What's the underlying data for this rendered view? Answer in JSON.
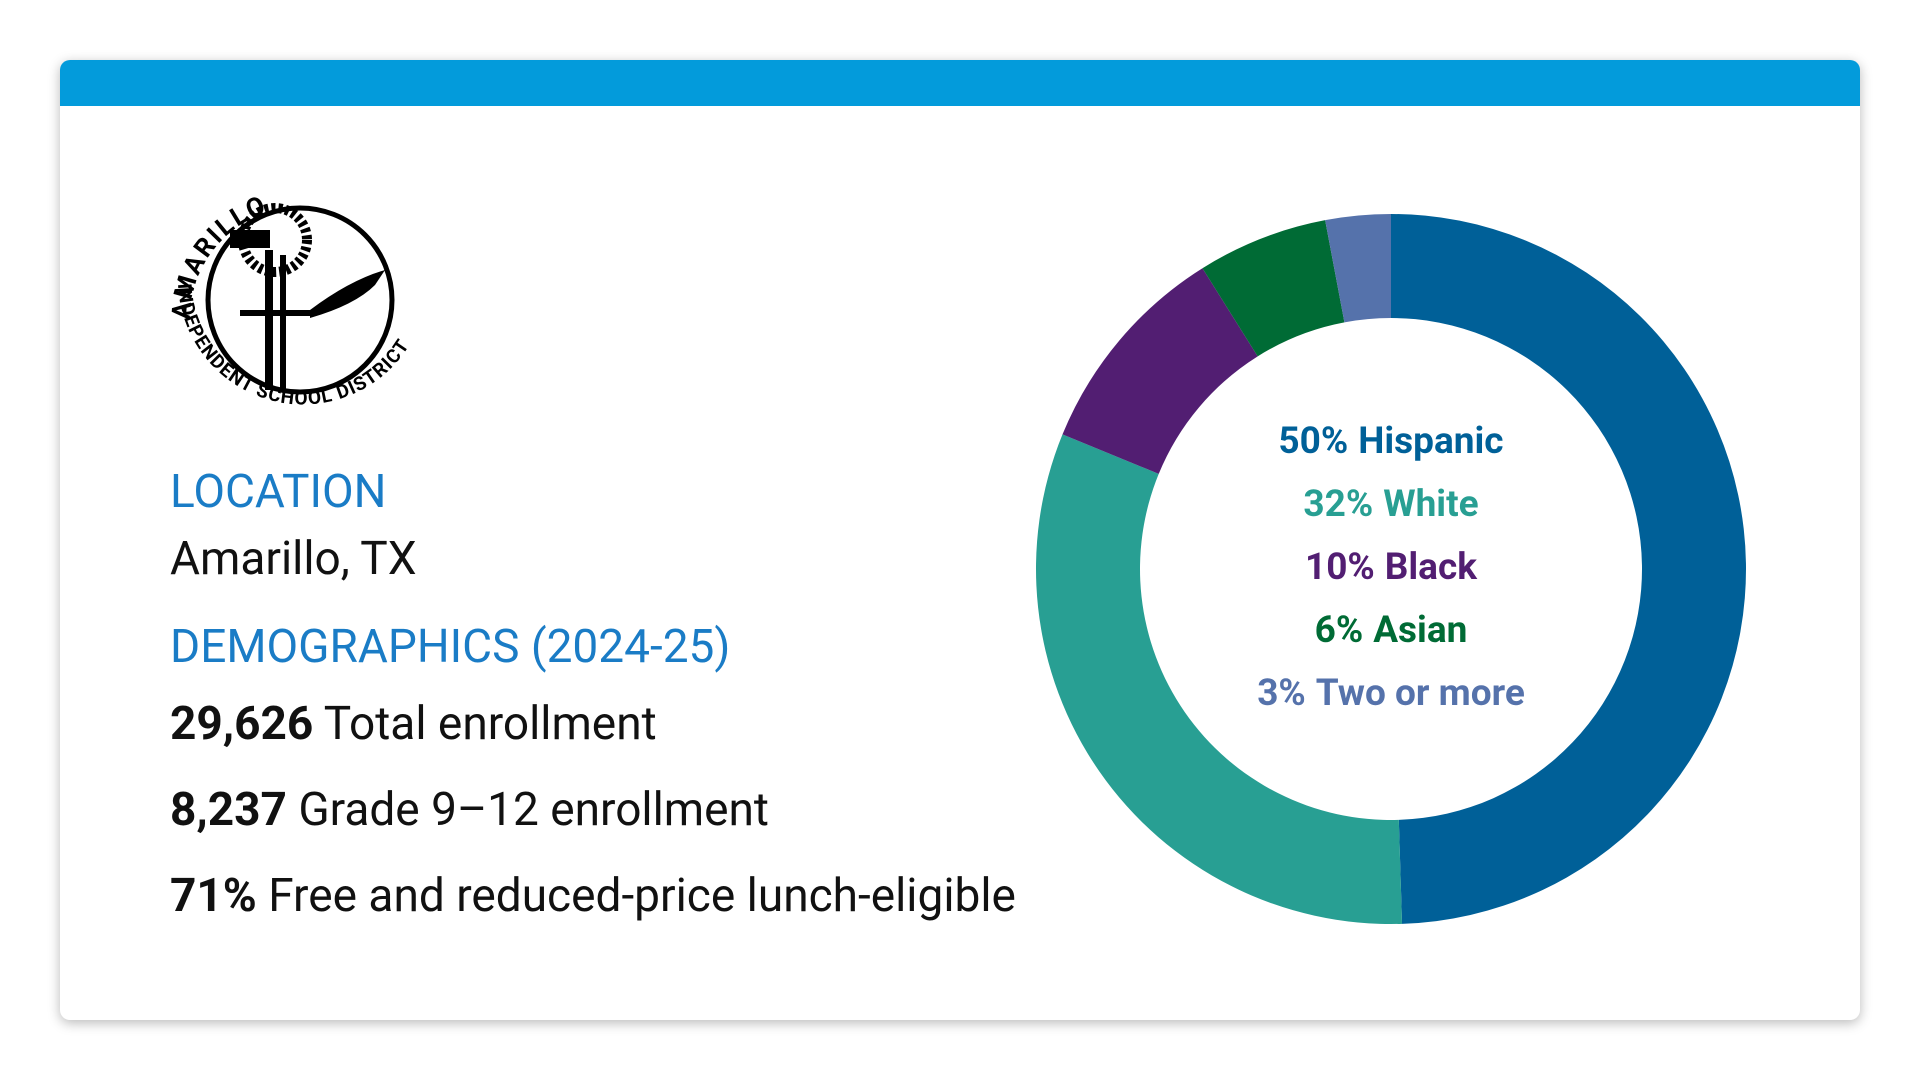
{
  "logo": {
    "top": "AMARILLO",
    "bottom": "INDEPENDENT SCHOOL DISTRICT"
  },
  "location": {
    "heading": "LOCATION",
    "value": "Amarillo, TX"
  },
  "demographics": {
    "heading": "DEMOGRAPHICS (2024-25)",
    "items": [
      {
        "value": "29,626",
        "label": "Total enrollment"
      },
      {
        "value": "8,237",
        "label": "Grade 9–12 enrollment"
      },
      {
        "value": "71%",
        "label": "Free and reduced-price lunch-eligible"
      }
    ]
  },
  "chart_data": {
    "type": "donut",
    "categories": [
      "Hispanic",
      "White",
      "Black",
      "Asian",
      "Two or more"
    ],
    "values": [
      50,
      32,
      10,
      6,
      3
    ],
    "value_labels": [
      "50%",
      "32%",
      "10%",
      "6%",
      "3%"
    ],
    "colors": [
      "#006098",
      "#289f93",
      "#521e72",
      "#006b35",
      "#5572ab"
    ]
  }
}
